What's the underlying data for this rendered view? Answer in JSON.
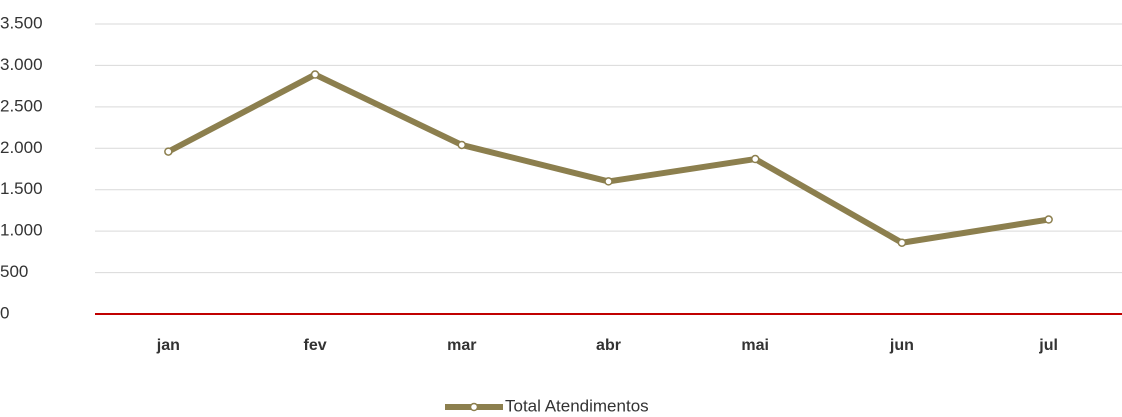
{
  "chart_data": {
    "type": "line",
    "categories": [
      "jan",
      "fev",
      "mar",
      "abr",
      "mai",
      "jun",
      "jul"
    ],
    "series": [
      {
        "name": "Total Atendimentos",
        "color": "#8c7f4e",
        "values": [
          1960,
          2890,
          2040,
          1600,
          1870,
          860,
          1140
        ]
      }
    ],
    "ylim": [
      0,
      3500
    ],
    "yticks": [
      0,
      500,
      {
        "value": 1000,
        "label": "1.000"
      },
      {
        "value": 1500,
        "label": "1.500"
      },
      {
        "value": 2000,
        "label": "2.000"
      },
      {
        "value": 2500,
        "label": "2.500"
      },
      {
        "value": 3000,
        "label": "3.000"
      },
      {
        "value": 3500,
        "label": "3.500"
      }
    ],
    "grid": true,
    "axis_color": "#c00000",
    "legend": "bottom"
  }
}
